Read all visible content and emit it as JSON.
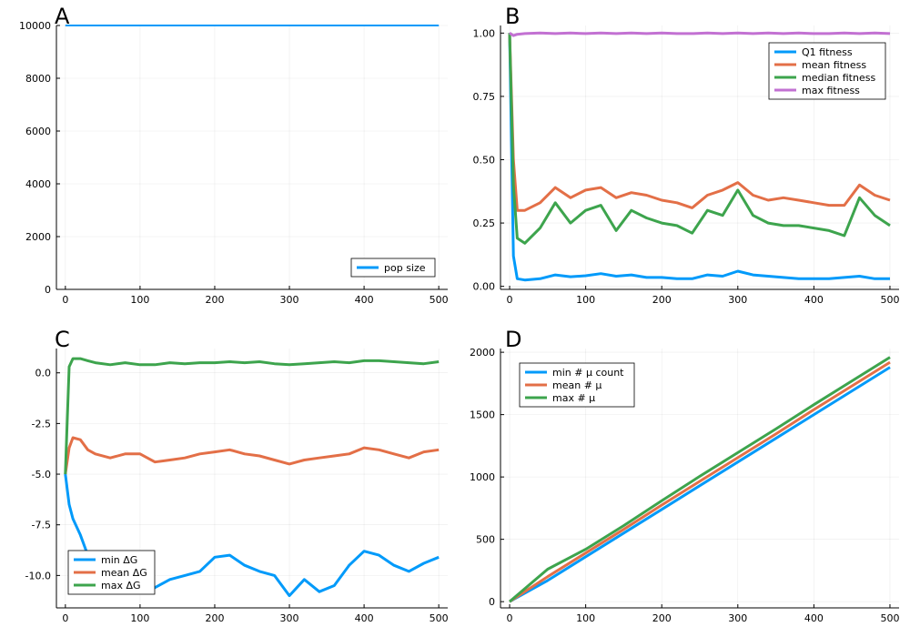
{
  "chart_data": [
    {
      "panel_label": "A",
      "type": "line",
      "x": [
        0,
        500
      ],
      "xlim": [
        -12,
        512
      ],
      "ylim": [
        0,
        10000
      ],
      "xticks": [
        0,
        100,
        200,
        300,
        400,
        500
      ],
      "yticks": [
        0,
        2000,
        4000,
        6000,
        8000,
        10000
      ],
      "grid": true,
      "legend_position": "bottom-right",
      "series": [
        {
          "name": "pop size",
          "color": "#009AFA",
          "values": [
            10000,
            10000
          ]
        }
      ]
    },
    {
      "panel_label": "B",
      "type": "line",
      "x": [
        0,
        5,
        10,
        20,
        40,
        60,
        80,
        100,
        120,
        140,
        160,
        180,
        200,
        220,
        240,
        260,
        280,
        300,
        320,
        340,
        360,
        380,
        400,
        420,
        440,
        460,
        480,
        500
      ],
      "xlim": [
        -12,
        512
      ],
      "ylim": [
        -0.012,
        1.03
      ],
      "xticks": [
        0,
        100,
        200,
        300,
        400,
        500
      ],
      "yticks": [
        0.0,
        0.25,
        0.5,
        0.75,
        1.0
      ],
      "grid": true,
      "legend_position": "top-right",
      "series": [
        {
          "name": "Q1 fitness",
          "color": "#009AFA",
          "values": [
            1.0,
            0.12,
            0.03,
            0.025,
            0.03,
            0.045,
            0.038,
            0.042,
            0.05,
            0.04,
            0.045,
            0.035,
            0.035,
            0.03,
            0.03,
            0.045,
            0.04,
            0.06,
            0.045,
            0.04,
            0.035,
            0.03,
            0.03,
            0.03,
            0.035,
            0.04,
            0.03,
            0.03
          ]
        },
        {
          "name": "mean fitness",
          "color": "#E36F47",
          "values": [
            1.0,
            0.5,
            0.3,
            0.3,
            0.33,
            0.39,
            0.35,
            0.38,
            0.39,
            0.35,
            0.37,
            0.36,
            0.34,
            0.33,
            0.31,
            0.36,
            0.38,
            0.41,
            0.36,
            0.34,
            0.35,
            0.34,
            0.33,
            0.32,
            0.32,
            0.4,
            0.36,
            0.34
          ]
        },
        {
          "name": "median fitness",
          "color": "#3DA44D",
          "values": [
            1.0,
            0.4,
            0.19,
            0.17,
            0.23,
            0.33,
            0.25,
            0.3,
            0.32,
            0.22,
            0.3,
            0.27,
            0.25,
            0.24,
            0.21,
            0.3,
            0.28,
            0.38,
            0.28,
            0.25,
            0.24,
            0.24,
            0.23,
            0.22,
            0.2,
            0.35,
            0.28,
            0.24
          ]
        },
        {
          "name": "max fitness",
          "color": "#C271D2",
          "values": [
            1.0,
            0.99,
            0.995,
            0.998,
            1.0,
            0.998,
            1.0,
            0.998,
            1.0,
            0.998,
            1.0,
            0.998,
            1.0,
            0.998,
            0.998,
            1.0,
            0.998,
            1.0,
            0.998,
            1.0,
            0.998,
            1.0,
            0.998,
            0.998,
            1.0,
            0.998,
            1.0,
            0.998
          ]
        }
      ]
    },
    {
      "panel_label": "C",
      "type": "line",
      "x": [
        0,
        5,
        10,
        20,
        30,
        40,
        60,
        80,
        100,
        120,
        140,
        160,
        180,
        200,
        220,
        240,
        260,
        280,
        300,
        320,
        340,
        360,
        380,
        400,
        420,
        440,
        460,
        480,
        500
      ],
      "xlim": [
        -12,
        512
      ],
      "ylim": [
        -11.6,
        1.2
      ],
      "xticks": [
        0,
        100,
        200,
        300,
        400,
        500
      ],
      "yticks": [
        -10.0,
        -7.5,
        -5.0,
        -2.5,
        0.0
      ],
      "grid": true,
      "legend_position": "bottom-left",
      "series": [
        {
          "name": "min ΔG",
          "color": "#009AFA",
          "values": [
            -5.0,
            -6.5,
            -7.2,
            -8.0,
            -9.0,
            -10.0,
            -10.3,
            -10.5,
            -10.4,
            -10.6,
            -10.2,
            -10.0,
            -9.8,
            -9.1,
            -9.0,
            -9.5,
            -9.8,
            -10.0,
            -11.0,
            -10.2,
            -10.8,
            -10.5,
            -9.5,
            -8.8,
            -9.0,
            -9.5,
            -9.8,
            -9.4,
            -9.1
          ]
        },
        {
          "name": "mean ΔG",
          "color": "#E36F47",
          "values": [
            -5.0,
            -3.7,
            -3.2,
            -3.3,
            -3.8,
            -4.0,
            -4.2,
            -4.0,
            -4.0,
            -4.4,
            -4.3,
            -4.2,
            -4.0,
            -3.9,
            -3.8,
            -4.0,
            -4.1,
            -4.3,
            -4.5,
            -4.3,
            -4.2,
            -4.1,
            -4.0,
            -3.7,
            -3.8,
            -4.0,
            -4.2,
            -3.9,
            -3.8
          ]
        },
        {
          "name": "max ΔG",
          "color": "#3DA44D",
          "values": [
            -5.0,
            0.3,
            0.7,
            0.7,
            0.6,
            0.5,
            0.4,
            0.5,
            0.4,
            0.4,
            0.5,
            0.45,
            0.5,
            0.5,
            0.55,
            0.5,
            0.55,
            0.45,
            0.4,
            0.45,
            0.5,
            0.55,
            0.5,
            0.6,
            0.6,
            0.55,
            0.5,
            0.45,
            0.55
          ]
        }
      ]
    },
    {
      "panel_label": "D",
      "type": "line",
      "x": [
        0,
        50,
        100,
        150,
        200,
        250,
        300,
        350,
        400,
        450,
        500
      ],
      "xlim": [
        -12,
        512
      ],
      "ylim": [
        -50,
        2030
      ],
      "xticks": [
        0,
        100,
        200,
        300,
        400,
        500
      ],
      "yticks": [
        0,
        500,
        1000,
        1500,
        2000
      ],
      "grid": true,
      "legend_position": "top-left",
      "series": [
        {
          "name": "min # μ count",
          "color": "#009AFA",
          "values": [
            0,
            170,
            360,
            550,
            740,
            930,
            1120,
            1310,
            1500,
            1690,
            1880
          ]
        },
        {
          "name": "mean # μ",
          "color": "#E36F47",
          "values": [
            0,
            200,
            390,
            580,
            775,
            965,
            1155,
            1345,
            1540,
            1730,
            1920
          ]
        },
        {
          "name": "max # μ",
          "color": "#3DA44D",
          "values": [
            0,
            260,
            420,
            610,
            810,
            1005,
            1195,
            1385,
            1580,
            1770,
            1960
          ]
        }
      ]
    }
  ]
}
